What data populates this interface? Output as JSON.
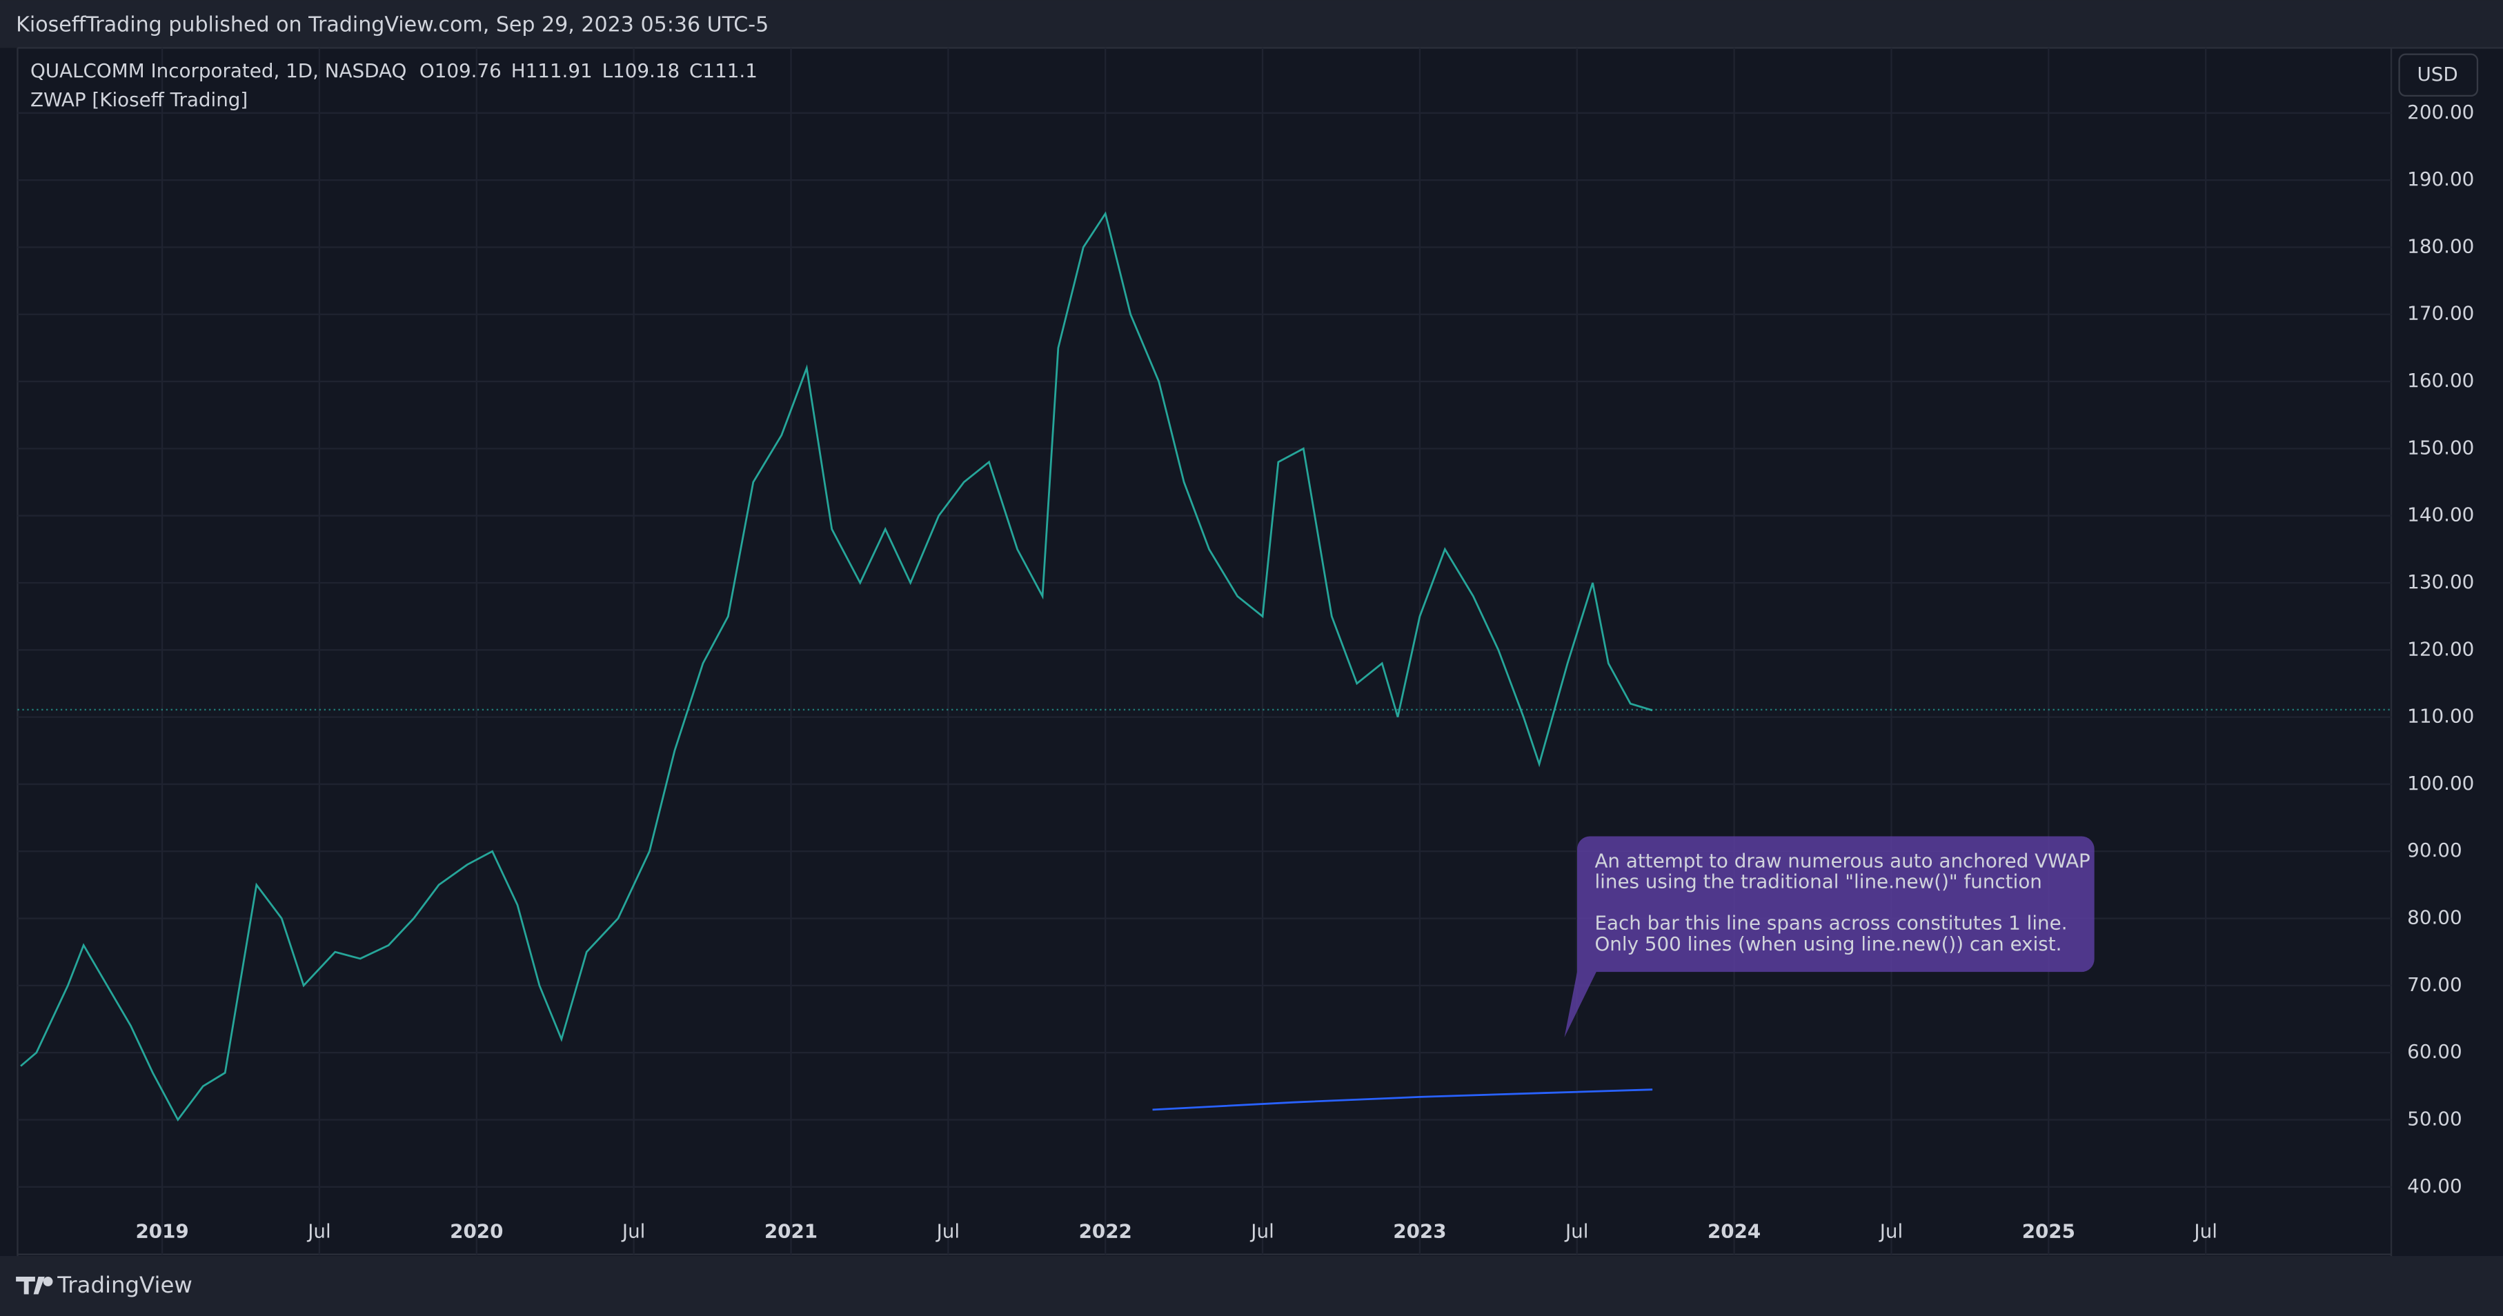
{
  "header": {
    "text": "KioseffTrading published on TradingView.com, Sep 29, 2023 05:36 UTC-5"
  },
  "footer": {
    "logo": "TradingView"
  },
  "chart_data": {
    "type": "line",
    "symbol": "QUALCOMM Incorporated, 1D, NASDAQ",
    "ohlc": {
      "labels": [
        "O",
        "H",
        "L",
        "C"
      ],
      "values": [
        109.76,
        111.91,
        109.18,
        111.1
      ]
    },
    "indicator": "ZWAP [Kioseff Trading]",
    "currency": "USD",
    "annotation": [
      "An attempt to draw numerous auto anchored VWAP",
      "lines using the traditional \"line.new()\" function",
      "Each bar this line spans across constitutes 1 line.",
      "Only 500 lines (when using line.new()) can exist."
    ],
    "xlim": [
      2018.54,
      2026.09
    ],
    "xticks": [
      {
        "value": 2019,
        "label": "2019"
      },
      {
        "value": 2019.5,
        "label": "Jul"
      },
      {
        "value": 2020,
        "label": "2020"
      },
      {
        "value": 2020.5,
        "label": "Jul"
      },
      {
        "value": 2021,
        "label": "2021"
      },
      {
        "value": 2021.5,
        "label": "Jul"
      },
      {
        "value": 2022,
        "label": "2022"
      },
      {
        "value": 2022.5,
        "label": "Jul"
      },
      {
        "value": 2023,
        "label": "2023"
      },
      {
        "value": 2023.5,
        "label": "Jul"
      },
      {
        "value": 2024,
        "label": "2024"
      },
      {
        "value": 2024.5,
        "label": "Jul"
      },
      {
        "value": 2025,
        "label": "2025"
      },
      {
        "value": 2025.5,
        "label": "Jul"
      }
    ],
    "ylim": [
      36.6,
      209.7
    ],
    "yticks": [
      {
        "value": 40,
        "label": "40.00"
      },
      {
        "value": 50,
        "label": "50.00"
      },
      {
        "value": 60,
        "label": "60.00"
      },
      {
        "value": 70,
        "label": "70.00"
      },
      {
        "value": 80,
        "label": "80.00"
      },
      {
        "value": 90,
        "label": "90.00"
      },
      {
        "value": 100,
        "label": "100.00"
      },
      {
        "value": 110,
        "label": "110.00"
      },
      {
        "value": 120,
        "label": "120.00"
      },
      {
        "value": 130,
        "label": "130.00"
      },
      {
        "value": 140,
        "label": "140.00"
      },
      {
        "value": 150,
        "label": "150.00"
      },
      {
        "value": 160,
        "label": "160.00"
      },
      {
        "value": 170,
        "label": "170.00"
      },
      {
        "value": 180,
        "label": "180.00"
      },
      {
        "value": 190,
        "label": "190.00"
      },
      {
        "value": 200,
        "label": "200.00"
      }
    ],
    "grid": true,
    "series": [
      {
        "color": "#26a69a",
        "x": [
          2018.55,
          2018.6,
          2018.7,
          2018.75,
          2018.8,
          2018.9,
          2018.97,
          2019.05,
          2019.13,
          2019.2,
          2019.3,
          2019.38,
          2019.45,
          2019.55,
          2019.63,
          2019.72,
          2019.8,
          2019.88,
          2019.97,
          2020.05,
          2020.13,
          2020.2,
          2020.27,
          2020.35,
          2020.45,
          2020.55,
          2020.63,
          2020.72,
          2020.8,
          2020.88,
          2020.97,
          2021.05,
          2021.13,
          2021.22,
          2021.3,
          2021.38,
          2021.47,
          2021.55,
          2021.63,
          2021.72,
          2021.8,
          2021.85,
          2021.93,
          2022.0,
          2022.08,
          2022.17,
          2022.25,
          2022.33,
          2022.42,
          2022.5,
          2022.55,
          2022.63,
          2022.72,
          2022.8,
          2022.88,
          2022.93,
          2023.0,
          2023.08,
          2023.17,
          2023.25,
          2023.33,
          2023.38,
          2023.47,
          2023.55,
          2023.6,
          2023.67,
          2023.74
        ],
        "values": [
          58,
          60,
          70,
          76,
          72,
          64,
          57,
          50,
          55,
          57,
          85,
          80,
          70,
          75,
          74,
          76,
          80,
          85,
          88,
          90,
          82,
          70,
          62,
          75,
          80,
          90,
          105,
          118,
          125,
          145,
          152,
          162,
          138,
          130,
          138,
          130,
          140,
          145,
          148,
          135,
          128,
          165,
          180,
          185,
          170,
          160,
          145,
          135,
          128,
          125,
          148,
          150,
          125,
          115,
          118,
          110,
          125,
          135,
          128,
          120,
          110,
          103,
          118,
          130,
          118,
          112,
          111
        ]
      },
      {
        "color": "#2962ff",
        "x": [
          2022.15,
          2022.6,
          2023.0,
          2023.4,
          2023.74
        ],
        "values": [
          51.5,
          52.6,
          53.4,
          54.0,
          54.5
        ]
      }
    ]
  }
}
